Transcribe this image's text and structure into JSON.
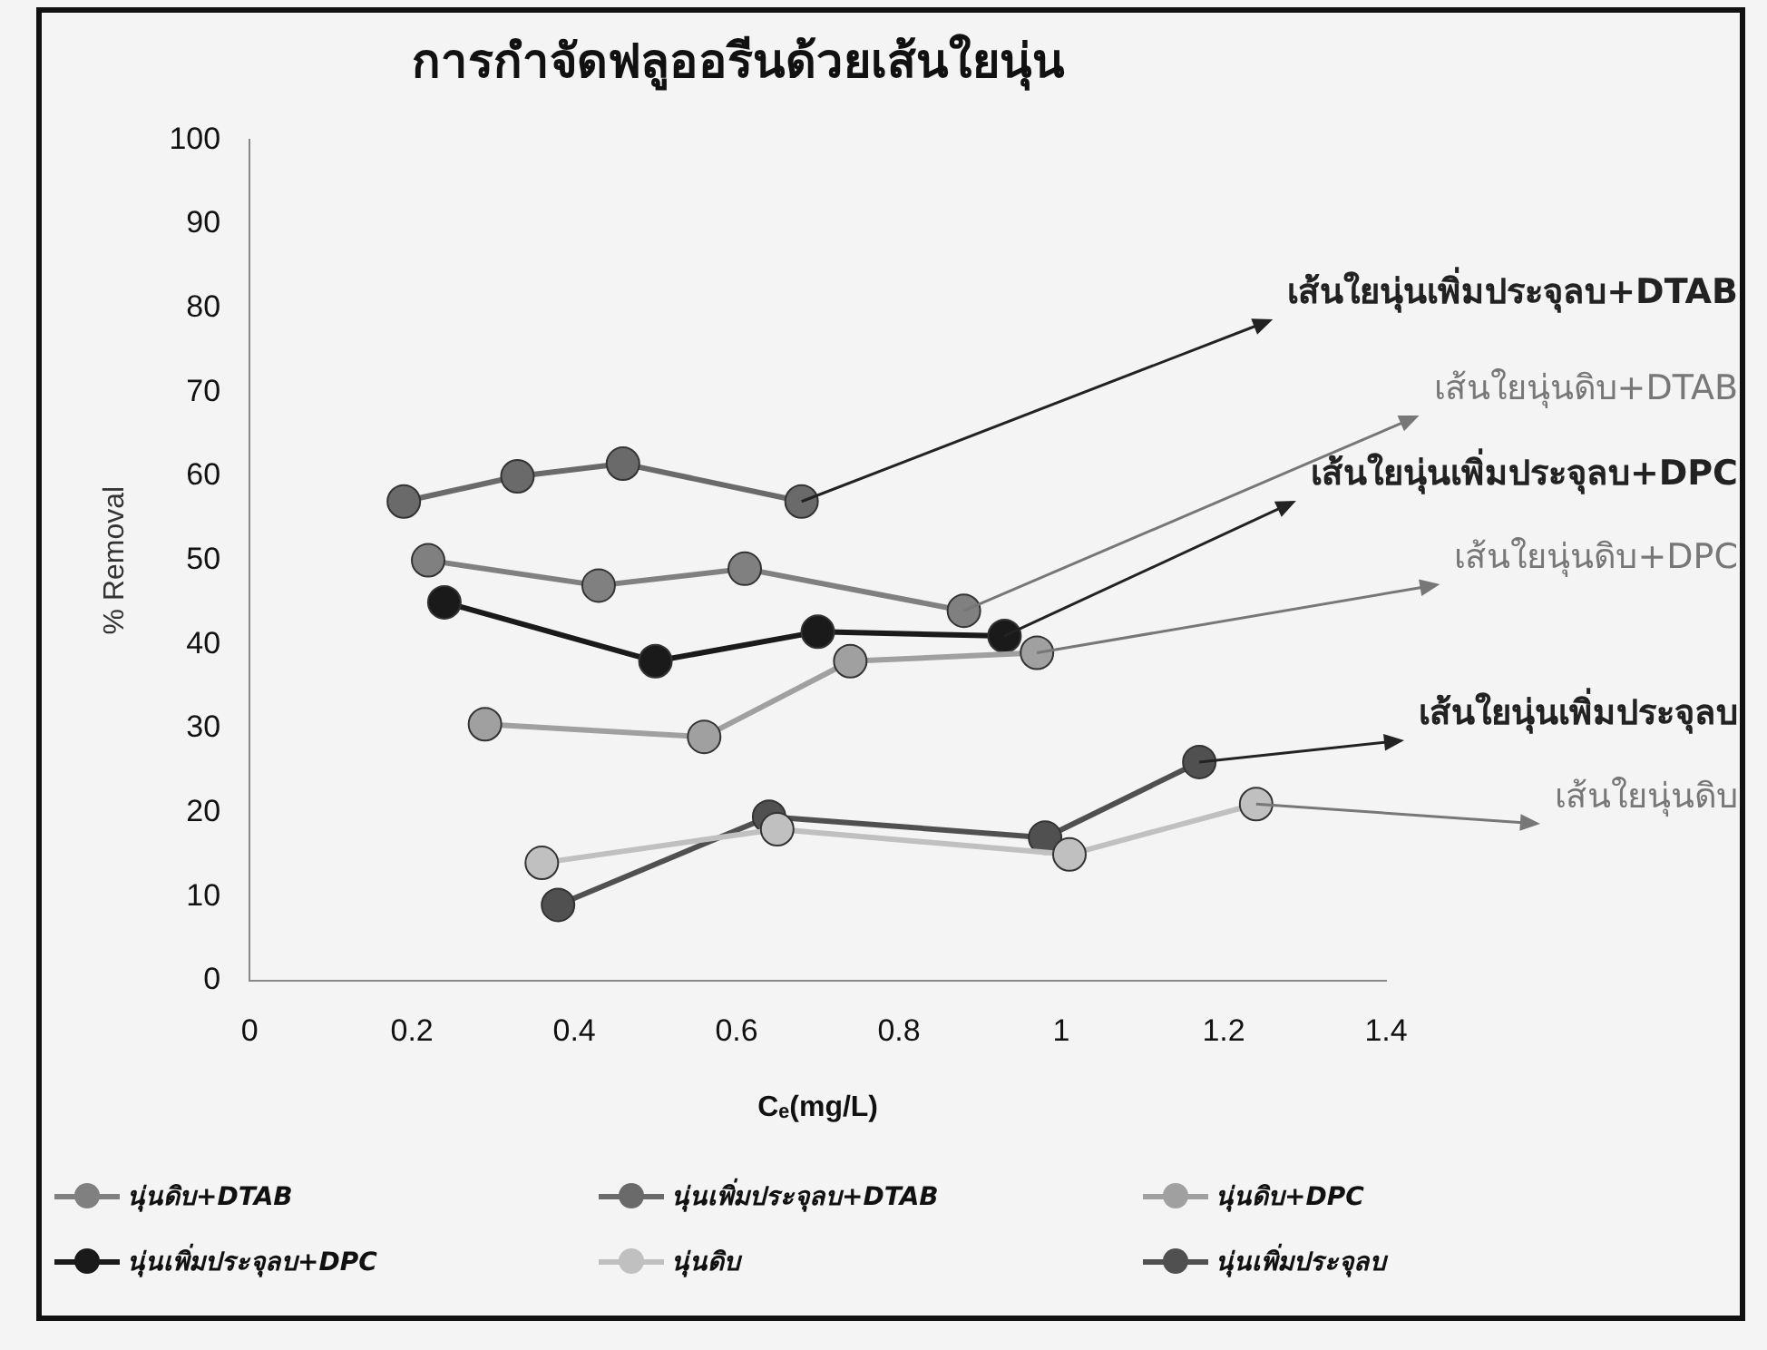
{
  "chart_data": {
    "type": "line",
    "title": "การกำจัดฟลูออรีนด้วยเส้นใยนุ่น",
    "xlabel": "Cₑ(mg/L)",
    "ylabel": "% Removal",
    "xlim": [
      0,
      1.4
    ],
    "xticks": [
      0,
      0.2,
      0.4,
      0.6,
      0.8,
      1,
      1.2,
      1.4
    ],
    "ylim": [
      0,
      100
    ],
    "yticks": [
      0,
      10,
      20,
      30,
      40,
      50,
      60,
      70,
      80,
      90,
      100
    ],
    "grid": false,
    "legend": "bottom",
    "marker": "circle",
    "line_style": "solid",
    "series": [
      {
        "name": "นุ่นดิบ+DTAB",
        "color": "#808080",
        "x": [
          0.22,
          0.43,
          0.61,
          0.88
        ],
        "values": [
          50,
          47,
          49,
          44
        ]
      },
      {
        "name": "นุ่นเพิ่มประจุลบ+DTAB",
        "color": "#6a6a6a",
        "x": [
          0.19,
          0.33,
          0.46,
          0.68
        ],
        "values": [
          57,
          60,
          61.5,
          57
        ]
      },
      {
        "name": "นุ่นดิบ+DPC",
        "color": "#a0a0a0",
        "x": [
          0.29,
          0.56,
          0.74,
          0.97
        ],
        "values": [
          30.5,
          29,
          38,
          39
        ]
      },
      {
        "name": "นุ่นเพิ่มประจุลบ+DPC",
        "color": "#1a1a1a",
        "x": [
          0.24,
          0.5,
          0.7,
          0.93
        ],
        "values": [
          45,
          38,
          41.5,
          41
        ]
      },
      {
        "name": "นุ่นดิบ",
        "color": "#c0c0c0",
        "x": [
          0.36,
          0.65,
          1.01,
          1.24
        ],
        "values": [
          14,
          18,
          15,
          21
        ]
      },
      {
        "name": "นุ่นเพิ่มประจุลบ",
        "color": "#505050",
        "x": [
          0.38,
          0.64,
          0.98,
          1.17
        ],
        "values": [
          9,
          19.5,
          17,
          26
        ]
      }
    ],
    "annotations": [
      {
        "text": "เส้นใยนุ่นเพิ่มประจุลบ+DTAB",
        "x": 0.68,
        "y": 57
      },
      {
        "text": "เส้นใยนุ่นดิบ+DTAB",
        "x": 0.88,
        "y": 44
      },
      {
        "text": "เส้นใยนุ่นเพิ่มประจุลบ+DPC",
        "x": 0.93,
        "y": 41
      },
      {
        "text": "เส้นใยนุ่นดิบ+DPC",
        "x": 0.97,
        "y": 39
      },
      {
        "text": "เส้นใยนุ่นเพิ่มประจุลบ",
        "x": 1.17,
        "y": 26
      },
      {
        "text": "เส้นใยนุ่นดิบ",
        "x": 1.24,
        "y": 21
      }
    ]
  }
}
